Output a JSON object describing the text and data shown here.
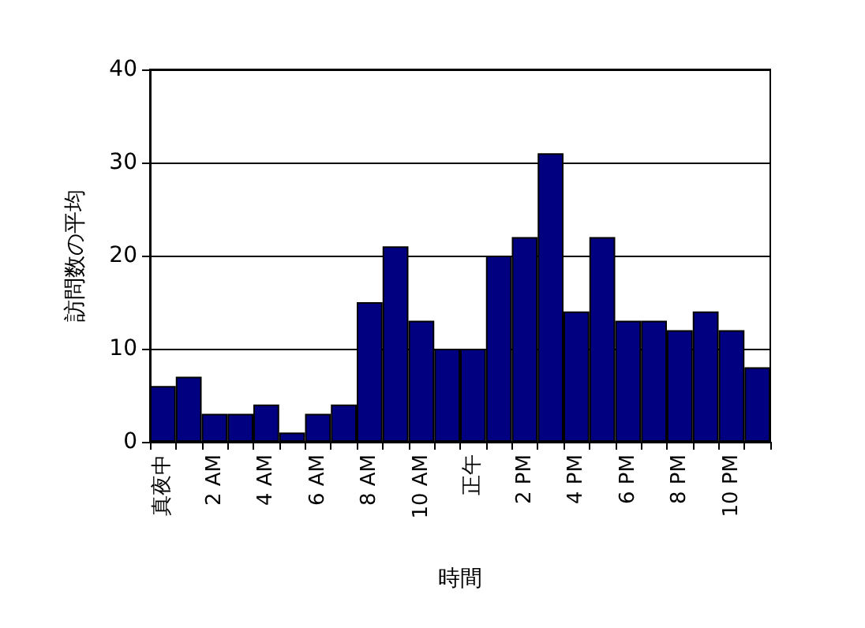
{
  "chart_data": {
    "type": "bar",
    "xlabel": "時間",
    "ylabel": "訪問数の平均",
    "categories": [
      "真夜中",
      null,
      "2 AM",
      null,
      "4 AM",
      null,
      "6 AM",
      null,
      "8 AM",
      null,
      "10 AM",
      null,
      "正午",
      null,
      "2 PM",
      null,
      "4 PM",
      null,
      "6 PM",
      null,
      "8 PM",
      null,
      "10 PM",
      null
    ],
    "values": [
      6,
      7,
      3,
      3,
      4,
      1,
      3,
      4,
      15,
      21,
      13,
      10,
      10,
      20,
      22,
      31,
      14,
      22,
      13,
      13,
      12,
      14,
      12,
      8
    ],
    "color": "#000080",
    "ylim": [
      0,
      40
    ],
    "yticks": [
      0,
      10,
      20,
      30,
      40
    ],
    "grid": "y"
  }
}
